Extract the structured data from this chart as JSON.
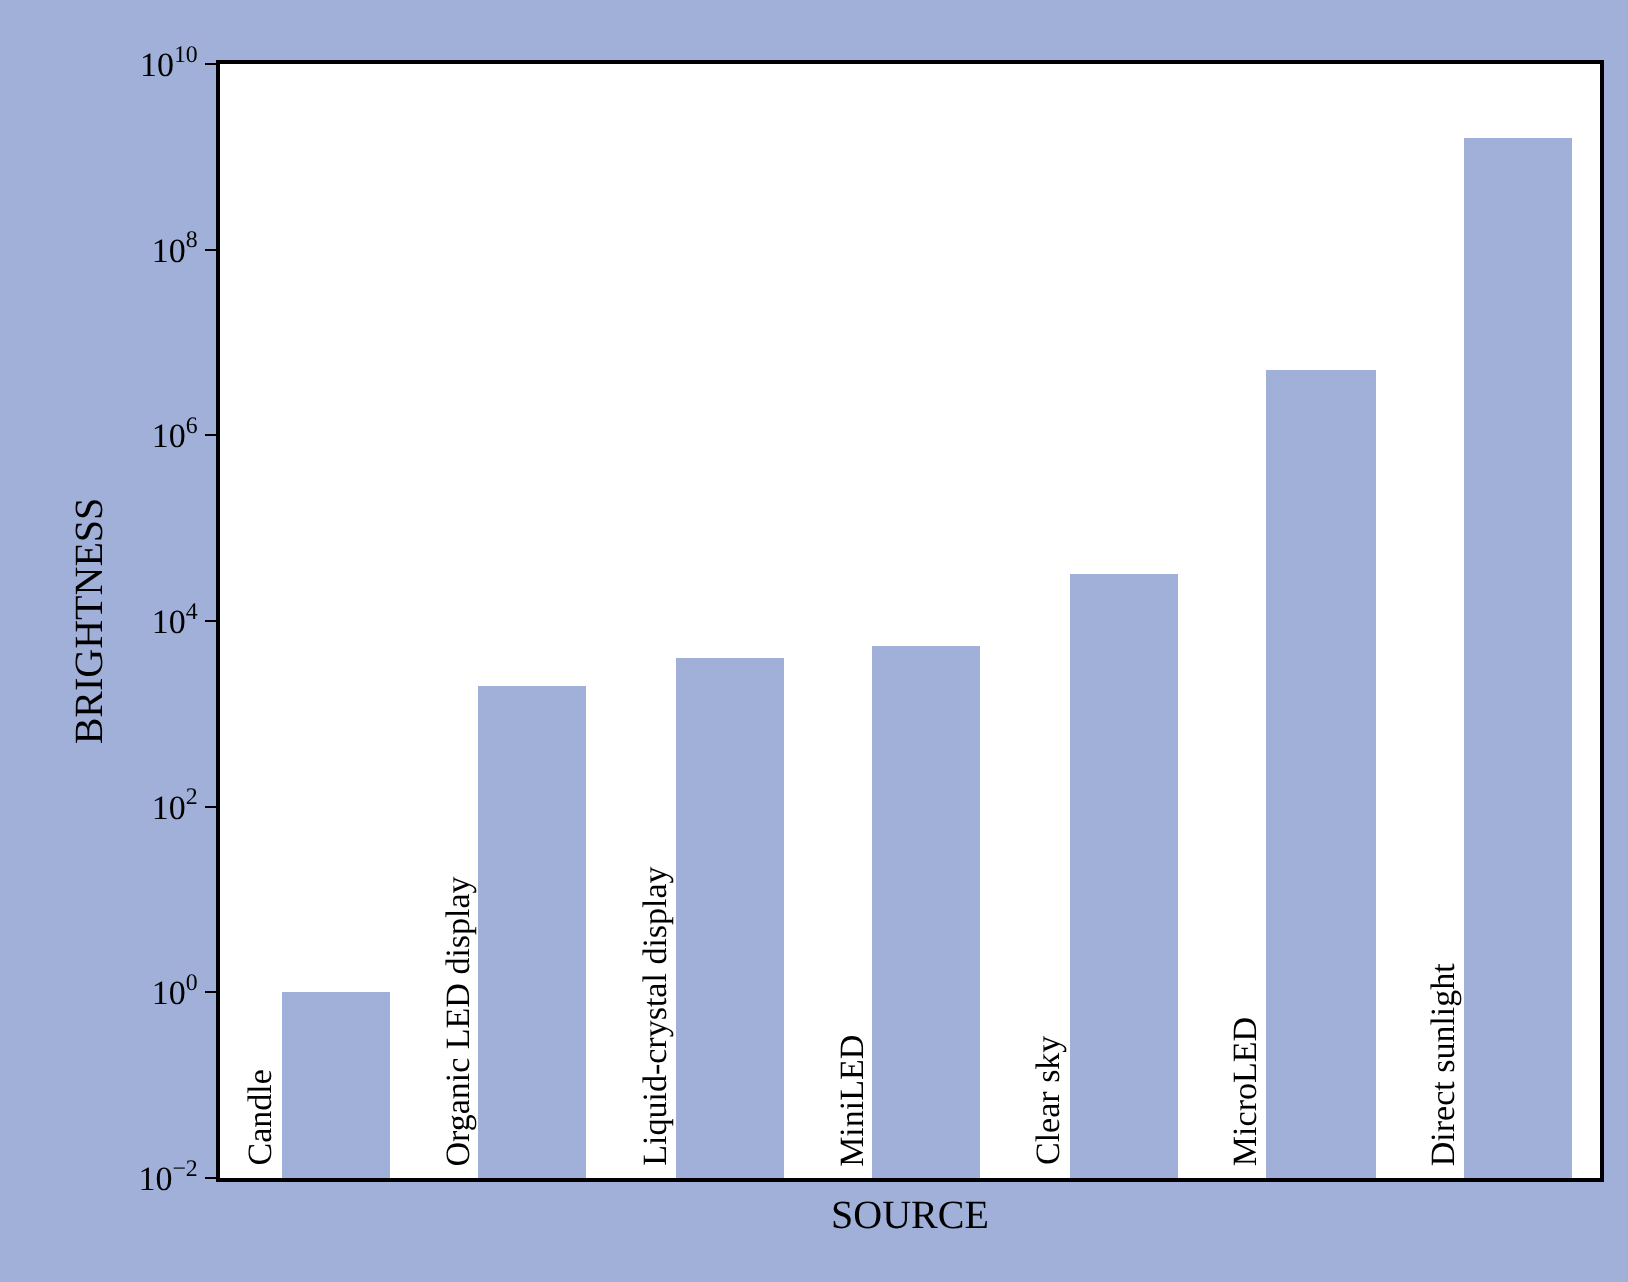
{
  "chart_data": {
    "type": "bar",
    "xlabel": "SOURCE",
    "ylabel": "BRIGHTNESS",
    "categories": [
      "Candle",
      "Organic LED display",
      "Liquid-crystal display",
      "MiniLED",
      "Clear sky",
      "MicroLED",
      "Direct sunlight"
    ],
    "values": [
      1,
      2000,
      4000,
      5500,
      32000,
      5000000,
      1600000000
    ],
    "color": "#a0b0d8",
    "log": "y",
    "ylim": [
      0.01,
      10000000000
    ],
    "yticks": [
      {
        "value": 0.01,
        "label": "10$^{−2}$"
      },
      {
        "value": 1,
        "label": "10$^{0}$"
      },
      {
        "value": 100,
        "label": "10$^{2}$"
      },
      {
        "value": 10000,
        "label": "10$^{4}$"
      },
      {
        "value": 1000000,
        "label": "10$^{6}$"
      },
      {
        "value": 100000000,
        "label": "10$^{8}$"
      },
      {
        "value": 10000000000,
        "label": "10$^{10}$"
      }
    ],
    "tick_labels": "y"
  }
}
